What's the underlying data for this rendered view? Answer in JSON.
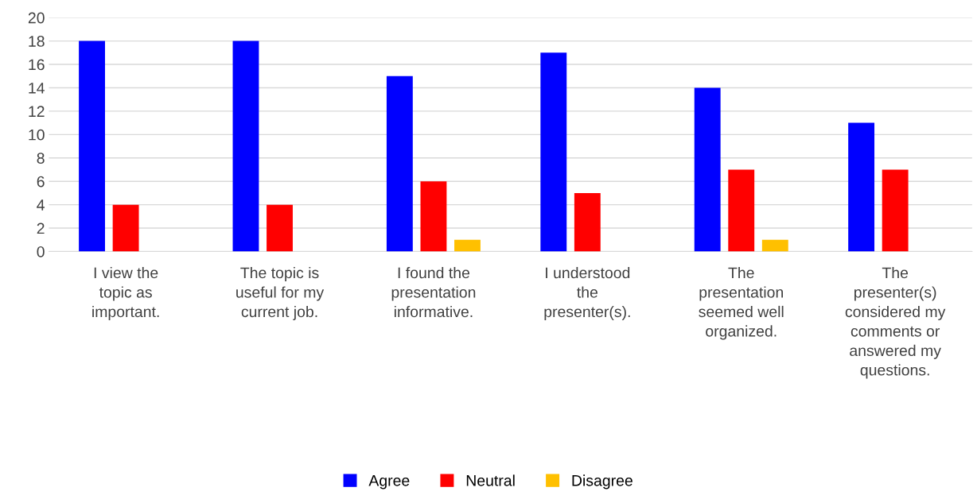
{
  "chart_data": {
    "type": "bar",
    "categories": [
      "I view the topic as important.",
      "The topic is useful for my current job.",
      "I found the presentation informative.",
      "I understood the presenter(s).",
      "The presentation seemed well organized.",
      "The presenter(s) considered my comments or answered my questions."
    ],
    "series": [
      {
        "name": "Agree",
        "color": "#0000ff",
        "values": [
          18,
          18,
          15,
          17,
          14,
          11
        ]
      },
      {
        "name": "Neutral",
        "color": "#ff0000",
        "values": [
          4,
          4,
          6,
          5,
          7,
          7
        ]
      },
      {
        "name": "Disagree",
        "color": "#ffc000",
        "values": [
          0,
          0,
          1,
          0,
          1,
          0
        ]
      }
    ],
    "ylim": [
      0,
      20
    ],
    "yticks": [
      0,
      2,
      4,
      6,
      8,
      10,
      12,
      14,
      16,
      18,
      20
    ],
    "grid": "y",
    "legend": "bottom"
  }
}
